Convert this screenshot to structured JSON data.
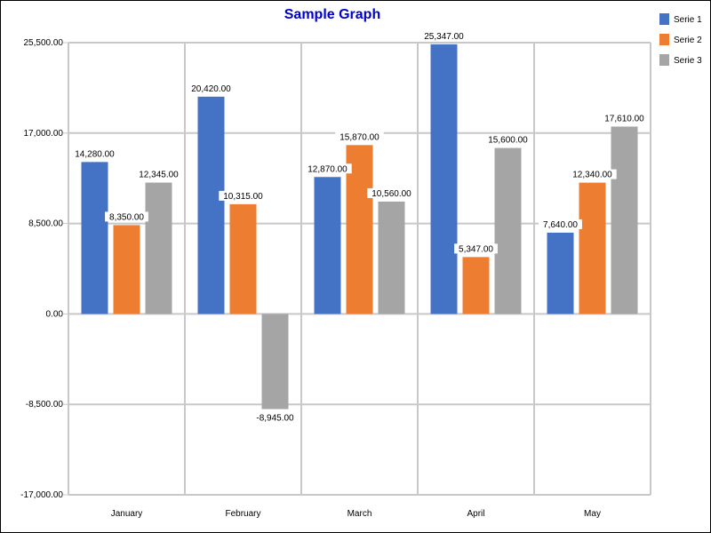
{
  "chart_data": {
    "type": "bar",
    "title": "Sample Graph",
    "title_color": "#0000cc",
    "categories": [
      "January",
      "February",
      "March",
      "April",
      "May"
    ],
    "series": [
      {
        "name": "Serie 1",
        "color": "#4472c4",
        "values": [
          14280,
          20420,
          12870,
          25347,
          7640
        ]
      },
      {
        "name": "Serie 2",
        "color": "#ed7d31",
        "values": [
          8350,
          10315,
          15870,
          5347,
          12340
        ]
      },
      {
        "name": "Serie 3",
        "color": "#a5a5a5",
        "values": [
          12345,
          -8945,
          10560,
          15600,
          17610
        ]
      }
    ],
    "ylim": [
      -17000,
      25500
    ],
    "yticks": [
      {
        "value": 25500,
        "label": "25,500.00"
      },
      {
        "value": 17000,
        "label": "17,000.00"
      },
      {
        "value": 8500,
        "label": "8,500.00"
      },
      {
        "value": 0,
        "label": "0.00"
      },
      {
        "value": -8500,
        "label": "-8,500.00"
      },
      {
        "value": -17000,
        "label": "-17,000.00"
      }
    ],
    "data_labels": [
      [
        "14,280.00",
        "20,420.00",
        "12,870.00",
        "25,347.00",
        "7,640.00"
      ],
      [
        "8,350.00",
        "10,315.00",
        "15,870.00",
        "5,347.00",
        "12,340.00"
      ],
      [
        "12,345.00",
        "-8,945.00",
        "10,560.00",
        "15,600.00",
        "17,610.00"
      ]
    ],
    "grid": true,
    "legend": "top-right",
    "xlabel": "",
    "ylabel": ""
  }
}
